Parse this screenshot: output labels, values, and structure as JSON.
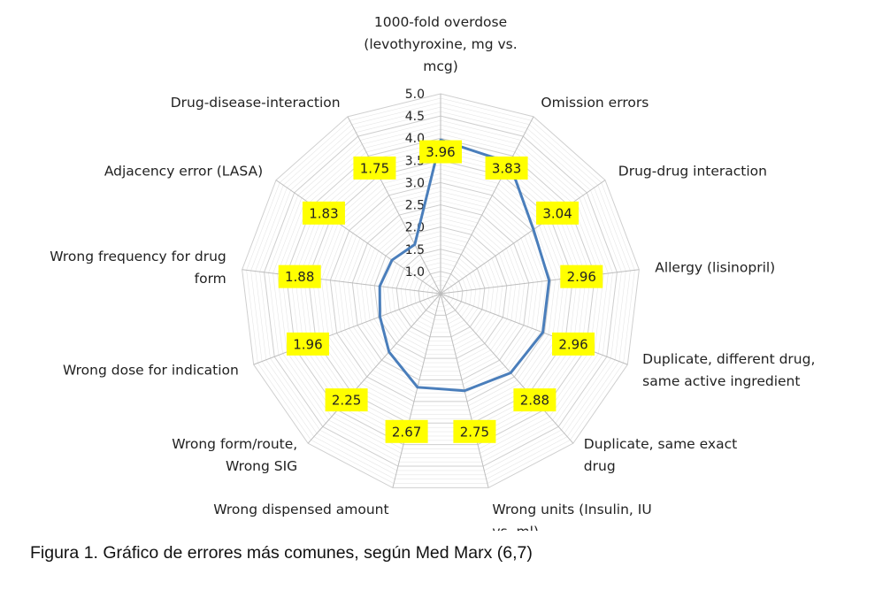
{
  "caption": "Figura 1. Gráfico de errores más comunes, según Med Marx (6,7)",
  "chart_data": {
    "type": "radar",
    "title": "",
    "categories": [
      [
        "1000-fold overdose",
        "(levothyroxine, mg vs.",
        "mcg)"
      ],
      [
        "Omission errors"
      ],
      [
        "Drug-drug interaction"
      ],
      [
        "Allergy (lisinopril)"
      ],
      [
        "Duplicate, different drug,",
        "same active ingredient"
      ],
      [
        "Duplicate, same exact",
        "drug"
      ],
      [
        "Wrong units (Insulin, IU",
        "vs. ml)"
      ],
      [
        "Wrong dispensed amount"
      ],
      [
        "Wrong form/route,",
        "Wrong SIG"
      ],
      [
        "Wrong dose for indication"
      ],
      [
        "Wrong frequency for drug",
        "form"
      ],
      [
        "Adjacency error (LASA)"
      ],
      [
        "Drug-disease-interaction"
      ]
    ],
    "series": [
      {
        "values": [
          3.96,
          3.83,
          3.04,
          2.96,
          2.96,
          2.88,
          2.75,
          2.67,
          2.25,
          1.96,
          1.88,
          1.83,
          1.75
        ],
        "value_labels": [
          "3.96",
          "3.83",
          "3.04",
          "2.96",
          "2.96",
          "2.88",
          "2.75",
          "2.67",
          "2.25",
          "1.96",
          "1.88",
          "1.83",
          "1.75"
        ],
        "color": "#4a7ebb"
      }
    ],
    "axis_min": 0.5,
    "axis_max": 5.0,
    "ticks": [
      "1.0",
      "1.5",
      "2.0",
      "2.5",
      "3.0",
      "3.5",
      "4.0",
      "4.5",
      "5.0"
    ],
    "tick_values": [
      1.0,
      1.5,
      2.0,
      2.5,
      3.0,
      3.5,
      4.0,
      4.5,
      5.0
    ],
    "grid": true,
    "gridline_color": "#cfcfcf",
    "label_box_color": "#ffff00"
  }
}
